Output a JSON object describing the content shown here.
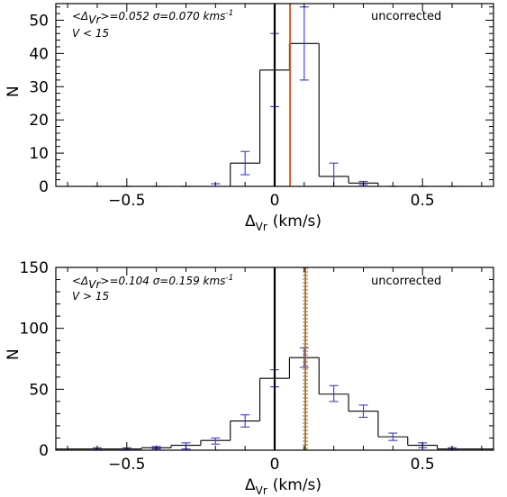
{
  "colors": {
    "mean_line": "#d9541e",
    "error_bar": "#3a3ad8",
    "sigma_line": "#37a837",
    "zero_line": "#000000"
  },
  "chart_data": [
    {
      "type": "bar",
      "subtype": "histogram",
      "xlabel_main": "Δ",
      "xlabel_sub": "Vr",
      "xlabel_unit": "(km/s)",
      "ylabel": "N",
      "xlim": [
        -0.74,
        0.74
      ],
      "ylim": [
        0,
        55
      ],
      "xticks": [
        -0.5,
        0,
        0.5
      ],
      "xtick_labels": [
        "−0.5",
        "0",
        "0.5"
      ],
      "yticks": [
        0,
        10,
        20,
        30,
        40,
        50
      ],
      "yticks_minor": [
        2,
        4,
        6,
        8,
        12,
        14,
        16,
        18,
        22,
        24,
        26,
        28,
        32,
        34,
        36,
        38,
        42,
        44,
        46,
        48,
        52,
        54
      ],
      "xticks_minor": [
        -0.7,
        -0.6,
        -0.4,
        -0.3,
        -0.2,
        -0.1,
        0.1,
        0.2,
        0.3,
        0.4,
        0.6,
        0.7
      ],
      "bin_edges": [
        -0.75,
        -0.65,
        -0.55,
        -0.45,
        -0.35,
        -0.25,
        -0.15,
        -0.05,
        0.05,
        0.15,
        0.25,
        0.35,
        0.45,
        0.55,
        0.65,
        0.75
      ],
      "counts": [
        0,
        0,
        0,
        0,
        0,
        0,
        7,
        35,
        43,
        3,
        1,
        0,
        0,
        0,
        0
      ],
      "error_x": [
        -0.6,
        -0.5,
        -0.4,
        -0.3,
        -0.2,
        -0.1,
        0,
        0.1,
        0.2,
        0.3,
        0.4,
        0.5,
        0.6
      ],
      "error_y": [
        0,
        0,
        0,
        0,
        0,
        7,
        35,
        43,
        3,
        1,
        0,
        0,
        0
      ],
      "error_lo": [
        0,
        0,
        0,
        0,
        0.8,
        3.5,
        24,
        32,
        0,
        0.5,
        0,
        0,
        0
      ],
      "error_hi": [
        0,
        0,
        0,
        0,
        0.8,
        10.5,
        46,
        54,
        7,
        1.5,
        0,
        0,
        0
      ],
      "mean": 0.052,
      "sigma_lines": [],
      "annotation_line1": "<Δ",
      "annotation_line1_sub": "Vr",
      "annotation_line1_rest": ">=0.052   σ=0.070  kms",
      "annotation_line1_sup": "-1",
      "annotation_line2": "V < 15",
      "corner_label": "uncorrected"
    },
    {
      "type": "bar",
      "subtype": "histogram",
      "xlabel_main": "Δ",
      "xlabel_sub": "Vr",
      "xlabel_unit": "(km/s)",
      "ylabel": "N",
      "xlim": [
        -0.74,
        0.74
      ],
      "ylim": [
        0,
        150
      ],
      "xticks": [
        -0.5,
        0,
        0.5
      ],
      "xtick_labels": [
        "−0.5",
        "0",
        "0.5"
      ],
      "yticks": [
        0,
        50,
        100,
        150
      ],
      "yticks_minor": [
        10,
        20,
        30,
        40,
        60,
        70,
        80,
        90,
        110,
        120,
        130,
        140
      ],
      "xticks_minor": [
        -0.7,
        -0.6,
        -0.4,
        -0.3,
        -0.2,
        -0.1,
        0.1,
        0.2,
        0.3,
        0.4,
        0.6,
        0.7
      ],
      "bin_edges": [
        -0.75,
        -0.65,
        -0.55,
        -0.45,
        -0.35,
        -0.25,
        -0.15,
        -0.05,
        0.05,
        0.15,
        0.25,
        0.35,
        0.45,
        0.55,
        0.65,
        0.75
      ],
      "counts": [
        1,
        1,
        1,
        2,
        4,
        8,
        24,
        59,
        76,
        46,
        32,
        11,
        4,
        1,
        1
      ],
      "error_x": [
        -0.6,
        -0.5,
        -0.4,
        -0.3,
        -0.2,
        -0.1,
        0,
        0.1,
        0.2,
        0.3,
        0.4,
        0.5,
        0.6
      ],
      "error_y": [
        1,
        1,
        2,
        4,
        8,
        24,
        59,
        76,
        46,
        32,
        11,
        4,
        1
      ],
      "error_lo": [
        0,
        0,
        1,
        1,
        5,
        19,
        52,
        68,
        40,
        27,
        8,
        2,
        0
      ],
      "error_hi": [
        2,
        2,
        3,
        6,
        10,
        29,
        66,
        84,
        53,
        37,
        14,
        6,
        2
      ],
      "mean": 0.104,
      "sigma_lines": [
        0.098,
        0.11
      ],
      "annotation_line1": "<Δ",
      "annotation_line1_sub": "Vr",
      "annotation_line1_rest": ">=0.104   σ=0.159  kms",
      "annotation_line1_sup": "-1",
      "annotation_line2": "V > 15",
      "corner_label": "uncorrected"
    }
  ]
}
